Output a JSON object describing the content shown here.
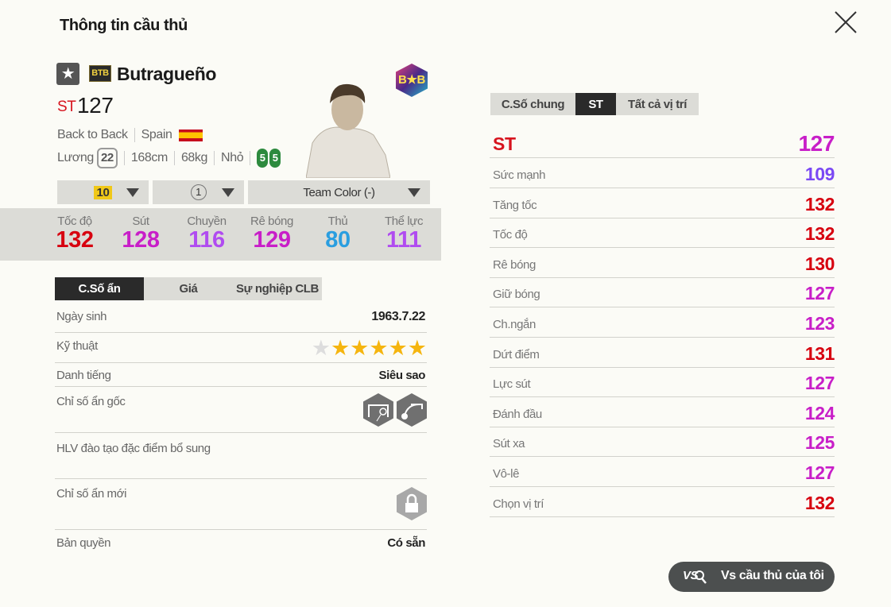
{
  "title": "Thông tin cầu thủ",
  "player": {
    "season": "BTB",
    "name": "Butragueño",
    "position": "ST",
    "ovr": "127",
    "season_name": "Back to Back",
    "nation": "Spain",
    "salary_label": "Lương",
    "salary": "22",
    "height": "168cm",
    "weight": "68kg",
    "body": "Nhỏ",
    "left_foot": "5",
    "right_foot": "5",
    "club_badge": "B★B"
  },
  "selectors": {
    "level": "10",
    "team_level": "1",
    "team_color": "Team Color (-)"
  },
  "main_stats": [
    {
      "label": "Tốc độ",
      "value": "132",
      "color": "#d7000f"
    },
    {
      "label": "Sút",
      "value": "128",
      "color": "#c81ec8"
    },
    {
      "label": "Chuyền",
      "value": "116",
      "color": "#b04cf0"
    },
    {
      "label": "Rê bóng",
      "value": "129",
      "color": "#c81ec8"
    },
    {
      "label": "Thủ",
      "value": "80",
      "color": "#2a9ee0"
    },
    {
      "label": "Thể lực",
      "value": "111",
      "color": "#b04cf0"
    }
  ],
  "left_tabs": [
    {
      "label": "C.Số ẩn",
      "active": true
    },
    {
      "label": "Giá"
    },
    {
      "label": "Sự nghiệp CLB"
    }
  ],
  "info": {
    "birth_label": "Ngày sinh",
    "birth": "1963.7.22",
    "skill_label": "Kỹ thuật",
    "skill_stars": 5,
    "skill_max": 6,
    "fame_label": "Danh tiếng",
    "fame": "Siêu sao",
    "traits_label": "Chỉ số ẩn gốc",
    "traits": [
      "goal-shot-icon",
      "curve-shot-icon"
    ],
    "coach_label": "HLV đào tạo đặc điểm bổ sung",
    "new_traits_label": "Chỉ số ẩn mới",
    "license_label": "Bản quyền",
    "license": "Có sẵn"
  },
  "right_tabs": [
    {
      "label": "C.Số chung"
    },
    {
      "label": "ST",
      "active": true
    },
    {
      "label": "Tất cả vị trí"
    }
  ],
  "position_stats": {
    "label": "ST",
    "value": "127",
    "color": "#c81ec8",
    "label_color": "#d7141e",
    "items": [
      {
        "label": "Sức mạnh",
        "value": "109",
        "color": "#7a48f4"
      },
      {
        "label": "Tăng tốc",
        "value": "132",
        "color": "#d7000f"
      },
      {
        "label": "Tốc độ",
        "value": "132",
        "color": "#d7000f"
      },
      {
        "label": "Rê bóng",
        "value": "130",
        "color": "#d7000f"
      },
      {
        "label": "Giữ bóng",
        "value": "127",
        "color": "#c81ec8"
      },
      {
        "label": "Ch.ngắn",
        "value": "123",
        "color": "#c81ec8"
      },
      {
        "label": "Dứt điểm",
        "value": "131",
        "color": "#d7000f"
      },
      {
        "label": "Lực sút",
        "value": "127",
        "color": "#c81ec8"
      },
      {
        "label": "Đánh đầu",
        "value": "124",
        "color": "#c81ec8"
      },
      {
        "label": "Sút xa",
        "value": "125",
        "color": "#c81ec8"
      },
      {
        "label": "Vô-lê",
        "value": "127",
        "color": "#c81ec8"
      },
      {
        "label": "Chọn vị trí",
        "value": "132",
        "color": "#d7000f"
      }
    ]
  },
  "compare_button": {
    "icon": "VS",
    "label": "Vs cầu thủ của tôi"
  }
}
